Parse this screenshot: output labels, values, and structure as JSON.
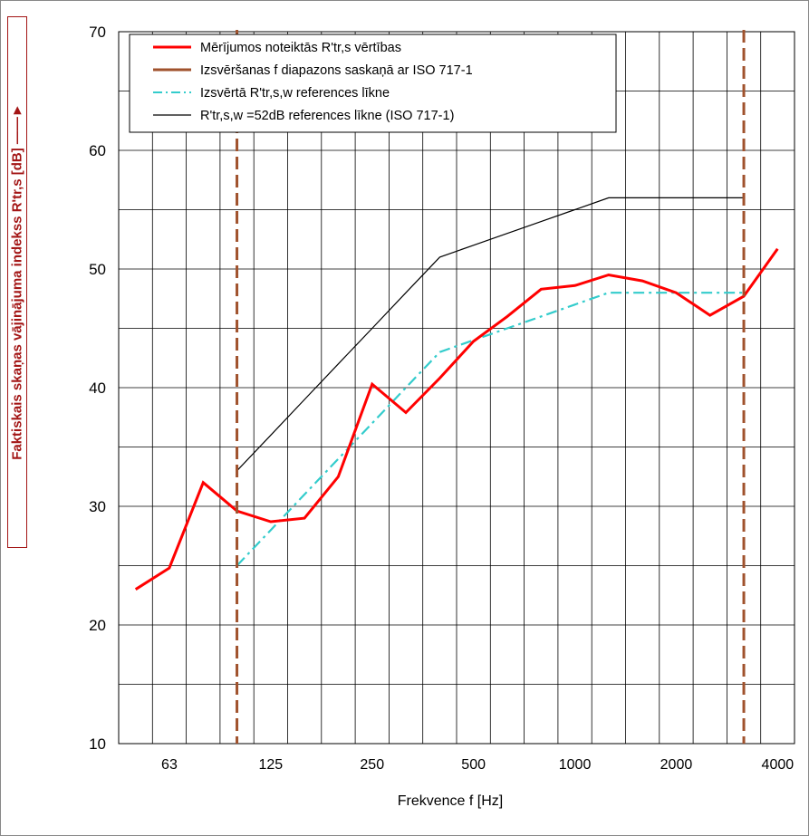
{
  "chart_data": {
    "type": "line",
    "xlabel": "Frekvence   f [Hz]",
    "ylabel": "Faktiskais skaņas vājinājuma indekss R'tr,s [dB]  ——►",
    "ylim": [
      10,
      70
    ],
    "yticks": [
      10,
      20,
      30,
      40,
      50,
      60,
      70
    ],
    "x_scale": "log",
    "x_tick_labels": [
      "63",
      "125",
      "250",
      "500",
      "1000",
      "2000",
      "4000"
    ],
    "x_tick_values": [
      63,
      125,
      250,
      500,
      1000,
      2000,
      4000
    ],
    "grid": true,
    "legend_position": "top",
    "series": [
      {
        "name": "Mērījumos noteiktās R'tr,s vērtības",
        "color": "#ff0000",
        "style": "solid-thick",
        "x": [
          50,
          63,
          80,
          100,
          125,
          160,
          200,
          250,
          315,
          400,
          500,
          630,
          800,
          1000,
          1250,
          1600,
          2000,
          2500,
          3150,
          4000,
          5000
        ],
        "y": [
          23.0,
          24.8,
          32.0,
          29.6,
          28.7,
          29.0,
          32.5,
          40.3,
          37.9,
          40.8,
          43.9,
          46.0,
          48.3,
          48.6,
          49.5,
          49.0,
          48.0,
          46.1,
          47.7,
          51.7,
          null
        ]
      },
      {
        "name": "Izsvēršanas f diapazons saskaņā ar ISO 717-1",
        "color": "#a0522d",
        "style": "dashed",
        "x_vertical": [
          100,
          3150
        ]
      },
      {
        "name": "Izsvērtā R'tr,s,w  references līkne",
        "color": "#33cccc",
        "style": "dashdot",
        "x": [
          100,
          125,
          160,
          200,
          250,
          315,
          400,
          500,
          630,
          800,
          1000,
          1250,
          1600,
          2000,
          2500,
          3150
        ],
        "y": [
          25.0,
          28.0,
          31.0,
          34.0,
          37.0,
          40.0,
          43.0,
          44.0,
          45.0,
          46.0,
          47.0,
          48.0,
          48.0,
          48.0,
          48.0,
          48.0
        ]
      },
      {
        "name": "R'tr,s,w =52dB references līkne (ISO 717-1)",
        "color": "#000000",
        "style": "solid-thin",
        "x": [
          100,
          125,
          160,
          200,
          250,
          315,
          400,
          500,
          630,
          800,
          1000,
          1250,
          1600,
          2000,
          2500,
          3150
        ],
        "y": [
          33,
          36,
          39,
          42,
          45,
          48,
          51,
          52,
          53,
          54,
          55,
          56,
          56,
          56,
          56,
          56
        ]
      }
    ]
  }
}
